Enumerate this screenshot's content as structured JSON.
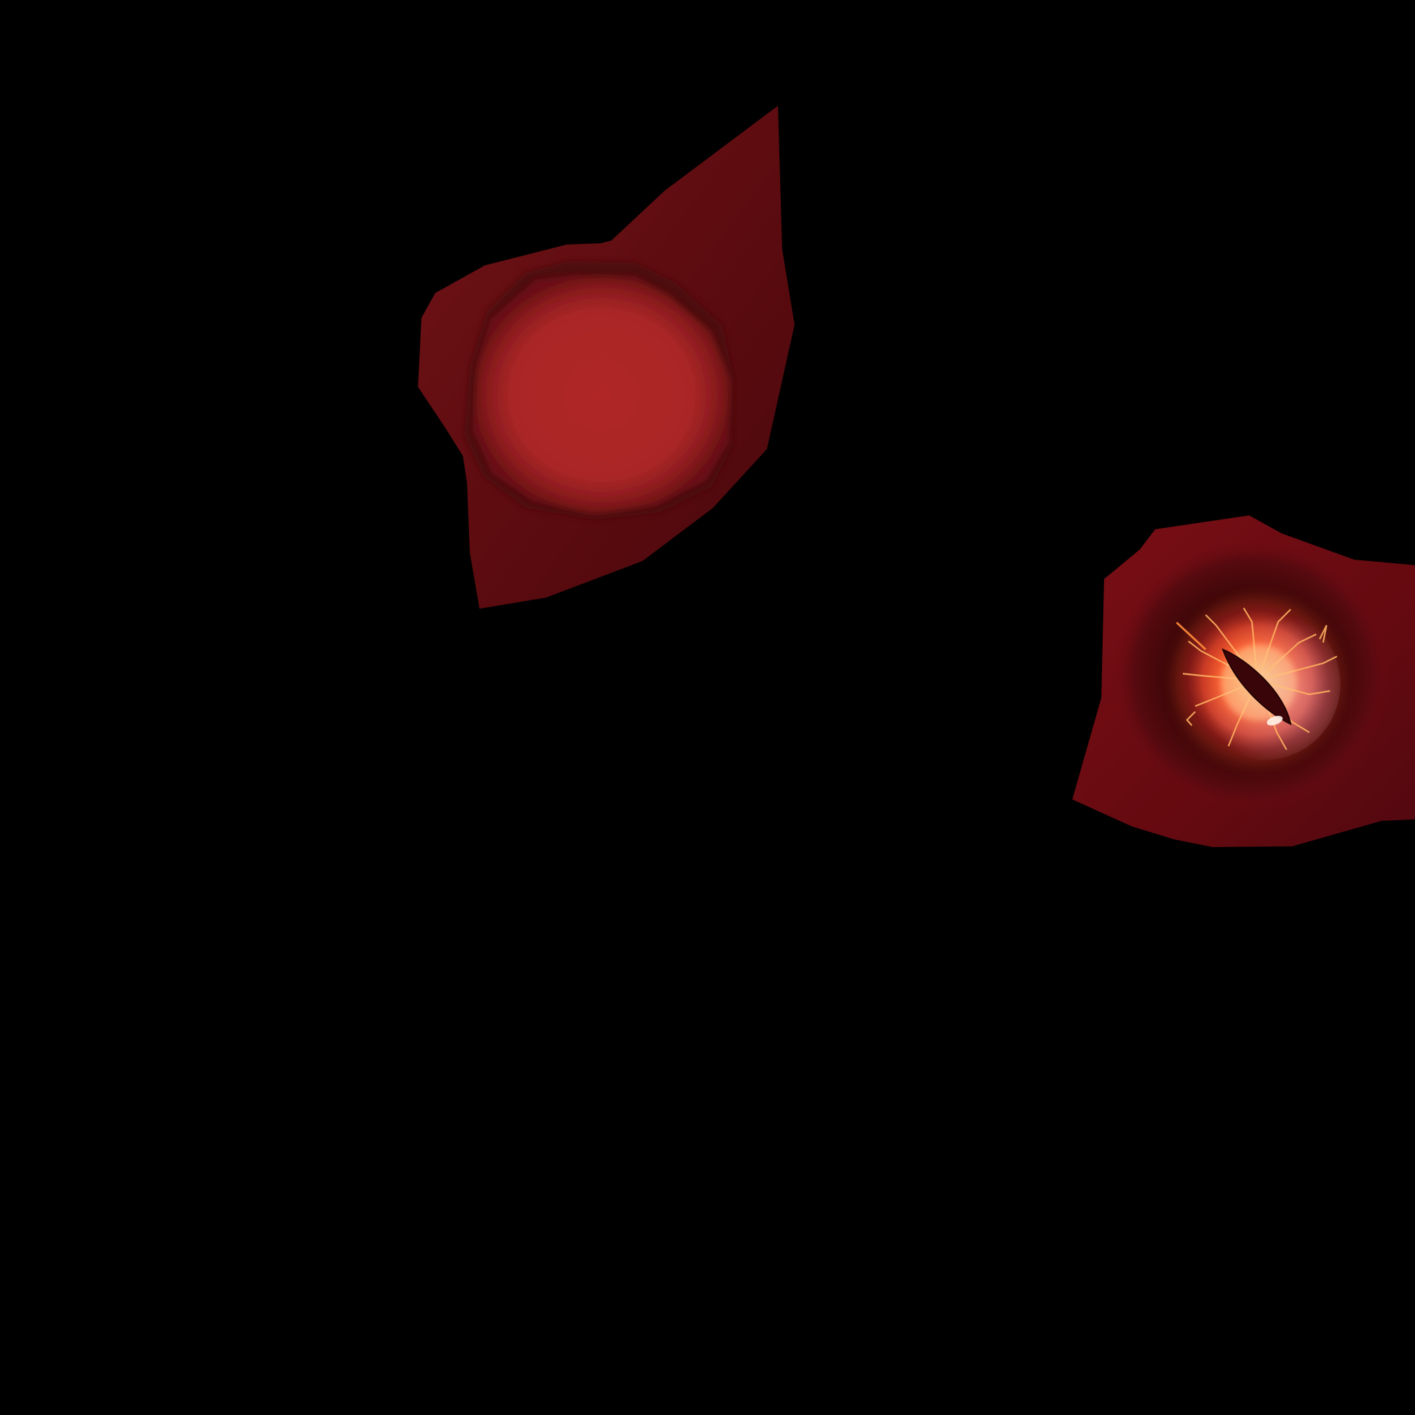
{
  "background_color": "#000000",
  "texture_parts": [
    {
      "name": "eye-socket-closed",
      "skin_color": "#5e0c10",
      "eyeball_color": "#b02828"
    },
    {
      "name": "eye-socket-open",
      "skin_color": "#6a0b12",
      "iris_glow_color": "#ff5a1e",
      "pupil_color": "#3a0508",
      "highlight_color": "#fff4e8"
    }
  ]
}
